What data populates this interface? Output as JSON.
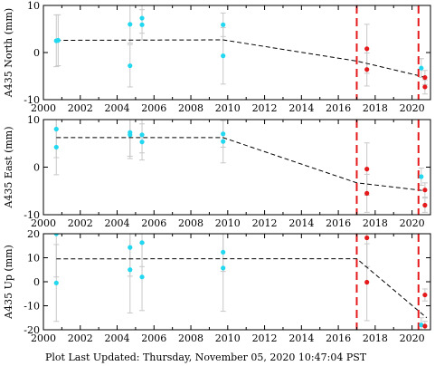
{
  "footer_text": "Plot Last Updated:   Thursday, November 05, 2020 10:47:04 PST",
  "colors": {
    "cyan": "#22d8f0",
    "red": "#e41a1c",
    "error_bar": "#c8c8c8",
    "trend": "#000000"
  },
  "chart_data": [
    {
      "type": "scatter",
      "ylabel": "A435 North (mm)",
      "xlim": [
        2000,
        2021
      ],
      "ylim": [
        -10,
        10
      ],
      "xticks": [
        2000,
        2002,
        2004,
        2006,
        2008,
        2010,
        2012,
        2014,
        2016,
        2018,
        2020
      ],
      "yticks": [
        -10,
        0,
        10
      ],
      "grid": false,
      "vlines": [
        2017.0,
        2020.35
      ],
      "trend": {
        "x": [
          2000.7,
          2009.75,
          2017.0,
          2020.8
        ],
        "y": [
          2.6,
          2.7,
          -1.8,
          -5.3
        ]
      },
      "series": [
        {
          "color_key": "cyan",
          "points": [
            {
              "x": 2000.7,
              "y": 2.5,
              "err": 5.5
            },
            {
              "x": 2000.8,
              "y": 2.6,
              "err": 5.4
            },
            {
              "x": 2004.7,
              "y": 6.0,
              "err": 4.0
            },
            {
              "x": 2004.7,
              "y": -2.8,
              "err": 4.5
            },
            {
              "x": 2005.35,
              "y": 7.3,
              "err": 3.2
            },
            {
              "x": 2005.35,
              "y": 5.9,
              "err": 3.2
            },
            {
              "x": 2009.75,
              "y": 5.9,
              "err": 2.5
            },
            {
              "x": 2009.75,
              "y": -0.7,
              "err": 6.0
            },
            {
              "x": 2020.5,
              "y": -3.3,
              "err": 2.0
            }
          ]
        },
        {
          "color_key": "red",
          "points": [
            {
              "x": 2017.55,
              "y": 0.8,
              "err": 5.2
            },
            {
              "x": 2017.55,
              "y": -3.6,
              "err": 3.5
            },
            {
              "x": 2020.7,
              "y": -5.3,
              "err": 1.5
            },
            {
              "x": 2020.7,
              "y": -7.3,
              "err": 1.5
            }
          ]
        }
      ]
    },
    {
      "type": "scatter",
      "ylabel": "A435 East (mm)",
      "xlim": [
        2000,
        2021
      ],
      "ylim": [
        -10,
        10
      ],
      "xticks": [
        2000,
        2002,
        2004,
        2006,
        2008,
        2010,
        2012,
        2014,
        2016,
        2018,
        2020
      ],
      "yticks": [
        -10,
        0,
        10
      ],
      "grid": false,
      "vlines": [
        2017.0,
        2020.35
      ],
      "trend": {
        "x": [
          2000.7,
          2009.75,
          2017.0,
          2020.8
        ],
        "y": [
          6.2,
          6.2,
          -3.3,
          -5.0
        ]
      },
      "series": [
        {
          "color_key": "cyan",
          "points": [
            {
              "x": 2000.7,
              "y": 8.0,
              "err": 6.0
            },
            {
              "x": 2000.7,
              "y": 4.2,
              "err": 5.8
            },
            {
              "x": 2004.7,
              "y": 7.3,
              "err": 5.0
            },
            {
              "x": 2004.7,
              "y": 6.8,
              "err": 5.0
            },
            {
              "x": 2005.35,
              "y": 6.8,
              "err": 3.8
            },
            {
              "x": 2005.35,
              "y": 5.3,
              "err": 3.8
            },
            {
              "x": 2009.75,
              "y": 7.0,
              "err": 2.8
            },
            {
              "x": 2009.75,
              "y": 5.4,
              "err": 4.5
            },
            {
              "x": 2020.5,
              "y": -2.0,
              "err": 1.8
            }
          ]
        },
        {
          "color_key": "red",
          "points": [
            {
              "x": 2017.55,
              "y": -0.4,
              "err": 5.5
            },
            {
              "x": 2017.55,
              "y": -5.5,
              "err": 4.0
            },
            {
              "x": 2020.7,
              "y": -4.8,
              "err": 1.5
            },
            {
              "x": 2020.7,
              "y": -8.0,
              "err": 1.5
            }
          ]
        }
      ]
    },
    {
      "type": "scatter",
      "ylabel": "A435 Up (mm)",
      "xlim": [
        2000,
        2021
      ],
      "ylim": [
        -20,
        20
      ],
      "xticks": [
        2000,
        2002,
        2004,
        2006,
        2008,
        2010,
        2012,
        2014,
        2016,
        2018,
        2020
      ],
      "yticks": [
        -20,
        -10,
        0,
        10,
        20
      ],
      "grid": false,
      "vlines": [
        2017.0,
        2020.35
      ],
      "trend": {
        "x": [
          2000.7,
          2009.75,
          2017.0,
          2020.8
        ],
        "y": [
          9.5,
          9.6,
          9.6,
          -15.0
        ]
      },
      "series": [
        {
          "color_key": "cyan",
          "points": [
            {
              "x": 2000.7,
              "y": 20.0,
              "err": 18.0
            },
            {
              "x": 2000.7,
              "y": -0.5,
              "err": 16.0
            },
            {
              "x": 2004.7,
              "y": 14.3,
              "err": 12.0
            },
            {
              "x": 2004.7,
              "y": 5.0,
              "err": 18.0
            },
            {
              "x": 2005.35,
              "y": 16.3,
              "err": 10.0
            },
            {
              "x": 2005.35,
              "y": 2.0,
              "err": 14.0
            },
            {
              "x": 2009.75,
              "y": 12.3,
              "err": 8.0
            },
            {
              "x": 2009.75,
              "y": 5.7,
              "err": 18.0
            },
            {
              "x": 2020.5,
              "y": -18.0,
              "err": 3.0
            }
          ]
        },
        {
          "color_key": "red",
          "points": [
            {
              "x": 2017.55,
              "y": 18.3,
              "err": 12.0
            },
            {
              "x": 2017.55,
              "y": -0.2,
              "err": 16.0
            },
            {
              "x": 2020.7,
              "y": -5.5,
              "err": 2.5
            },
            {
              "x": 2020.7,
              "y": -18.5,
              "err": 2.0
            }
          ]
        }
      ]
    }
  ]
}
